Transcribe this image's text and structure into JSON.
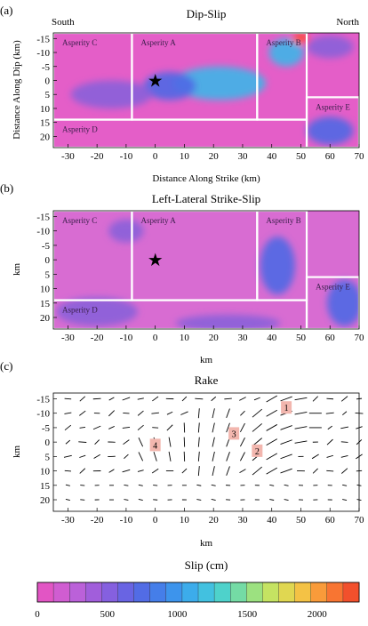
{
  "colors": {
    "magenta": "#e45ec8",
    "pink": "#d86cd2",
    "purple": "#8a5fd9",
    "blue": "#4f68e4",
    "cyan": "#3fb5e8",
    "hot": "#ff4a2a",
    "asperity_line": "#ffffff",
    "asperity_text": "#3a1e4a",
    "number_box": "#f2b6ae"
  },
  "chart_data": [
    {
      "panel": "(a)",
      "type": "heatmap",
      "title": "Dip-Slip",
      "corner_left": "South",
      "corner_right": "North",
      "xlabel": "Distance Along Strike (km)",
      "ylabel": "Distance Along Dip (km)",
      "xlim": [
        -35,
        70
      ],
      "ylim": [
        -17,
        24
      ],
      "xticks": [
        "-30",
        "-20",
        "-10",
        "0",
        "10",
        "20",
        "30",
        "40",
        "50",
        "60",
        "70"
      ],
      "yticks": [
        "-15",
        "-10",
        "-5",
        "0",
        "5",
        "10",
        "15",
        "20"
      ],
      "hypocenter": {
        "x": 0,
        "y": 0
      },
      "asperities": [
        {
          "label": "Asperity C",
          "x": [
            -35,
            -8
          ],
          "y": [
            -17,
            14
          ]
        },
        {
          "label": "Asperity A",
          "x": [
            -8,
            35
          ],
          "y": [
            -17,
            14
          ]
        },
        {
          "label": "Asperity B",
          "x": [
            35,
            52
          ],
          "y": [
            -17,
            14
          ]
        },
        {
          "label": "Asperity E",
          "x": [
            52,
            70
          ],
          "y": [
            6,
            24
          ]
        },
        {
          "label": "Asperity D",
          "x": [
            -35,
            52
          ],
          "y": [
            14,
            24
          ]
        }
      ],
      "slip_patches": [
        {
          "x": 22,
          "y": 1,
          "rx": 16,
          "ry": 6,
          "level": "cyan"
        },
        {
          "x": 5,
          "y": 2,
          "rx": 9,
          "ry": 5,
          "level": "blue"
        },
        {
          "x": 45,
          "y": -10,
          "rx": 6,
          "ry": 5,
          "level": "cyan"
        },
        {
          "x": 50,
          "y": -15,
          "rx": 3,
          "ry": 2,
          "level": "hot"
        },
        {
          "x": -15,
          "y": 5,
          "rx": 14,
          "ry": 5,
          "level": "purple"
        },
        {
          "x": 60,
          "y": 18,
          "rx": 8,
          "ry": 5,
          "level": "blue"
        },
        {
          "x": 60,
          "y": -12,
          "rx": 8,
          "ry": 4,
          "level": "purple"
        }
      ]
    },
    {
      "panel": "(b)",
      "type": "heatmap",
      "title": "Left-Lateral Strike-Slip",
      "xlabel": "km",
      "ylabel": "km",
      "xlim": [
        -35,
        70
      ],
      "ylim": [
        -17,
        24
      ],
      "xticks": [
        "-30",
        "-20",
        "-10",
        "0",
        "10",
        "20",
        "30",
        "40",
        "50",
        "60",
        "70"
      ],
      "yticks": [
        "-15",
        "-10",
        "-5",
        "0",
        "5",
        "10",
        "15",
        "20"
      ],
      "hypocenter": {
        "x": 0,
        "y": 0
      },
      "asperities": [
        {
          "label": "Asperity C",
          "x": [
            -35,
            -8
          ],
          "y": [
            -17,
            14
          ]
        },
        {
          "label": "Asperity A",
          "x": [
            -8,
            35
          ],
          "y": [
            -17,
            14
          ]
        },
        {
          "label": "Asperity B",
          "x": [
            35,
            52
          ],
          "y": [
            -17,
            14
          ]
        },
        {
          "label": "Asperity E",
          "x": [
            52,
            70
          ],
          "y": [
            6,
            24
          ]
        },
        {
          "label": "Asperity D",
          "x": [
            -35,
            52
          ],
          "y": [
            14,
            24
          ]
        }
      ],
      "slip_patches": [
        {
          "x": 42,
          "y": 2,
          "rx": 6,
          "ry": 10,
          "level": "blue"
        },
        {
          "x": 65,
          "y": 15,
          "rx": 6,
          "ry": 8,
          "level": "blue"
        },
        {
          "x": -20,
          "y": 18,
          "rx": 14,
          "ry": 5,
          "level": "purple"
        },
        {
          "x": -10,
          "y": -10,
          "rx": 6,
          "ry": 4,
          "level": "purple"
        },
        {
          "x": 25,
          "y": 22,
          "rx": 18,
          "ry": 3,
          "level": "purple"
        }
      ]
    },
    {
      "panel": "(c)",
      "type": "vector-field",
      "title": "Rake",
      "xlabel": "km",
      "ylabel": "km",
      "xlim": [
        -35,
        70
      ],
      "ylim": [
        -17,
        24
      ],
      "xticks": [
        "-30",
        "-20",
        "-10",
        "0",
        "10",
        "20",
        "30",
        "40",
        "50",
        "60",
        "70"
      ],
      "yticks": [
        "-15",
        "-10",
        "-5",
        "0",
        "5",
        "10",
        "15",
        "20"
      ],
      "grid_spacing_km": 5,
      "markers": [
        {
          "label": "1",
          "x": 45,
          "y": -12
        },
        {
          "label": "3",
          "x": 27,
          "y": -3
        },
        {
          "label": "2",
          "x": 35,
          "y": 3
        },
        {
          "label": "4",
          "x": 0,
          "y": 1
        }
      ]
    }
  ],
  "colorbar": {
    "title": "Slip (cm)",
    "min": 0,
    "max": 2300,
    "ticks": [
      "0",
      "500",
      "1000",
      "1500",
      "2000"
    ],
    "stops": [
      "#e255c4",
      "#c662d8",
      "#9d5edb",
      "#6f62e2",
      "#4a6fe6",
      "#3d92ec",
      "#3cb8ea",
      "#4fd3c9",
      "#8fe08a",
      "#cfe45a",
      "#f3c847",
      "#fb8b35",
      "#f2502c"
    ]
  }
}
